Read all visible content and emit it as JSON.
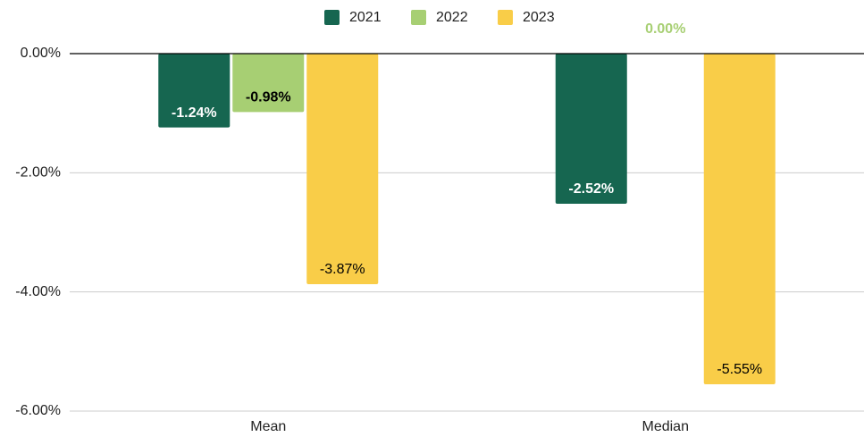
{
  "chart_data": {
    "type": "bar",
    "categories": [
      "Mean",
      "Median"
    ],
    "series": [
      {
        "name": "2021",
        "color": "#166650",
        "label_color": "#ffffff",
        "label_bold": true,
        "values": [
          -1.24,
          -2.52
        ],
        "value_labels": [
          "-1.24%",
          "-2.52%"
        ]
      },
      {
        "name": "2022",
        "color": "#a7cf73",
        "label_color": "#000000",
        "label_bold": true,
        "values": [
          -0.98,
          0
        ],
        "value_labels": [
          "-0.98%",
          "0.00%"
        ]
      },
      {
        "name": "2023",
        "color": "#f9cd48",
        "label_color": "#000000",
        "label_bold": false,
        "values": [
          -3.87,
          -5.55
        ],
        "value_labels": [
          "-3.87%",
          "-5.55%"
        ]
      }
    ],
    "ylim": [
      -6,
      0
    ],
    "yticks": [
      {
        "value": 0,
        "label": "0.00%"
      },
      {
        "value": -2,
        "label": "-2.00%"
      },
      {
        "value": -4,
        "label": "-4.00%"
      },
      {
        "value": -6,
        "label": "-6.00%"
      }
    ],
    "grid": true,
    "legend": "top"
  }
}
